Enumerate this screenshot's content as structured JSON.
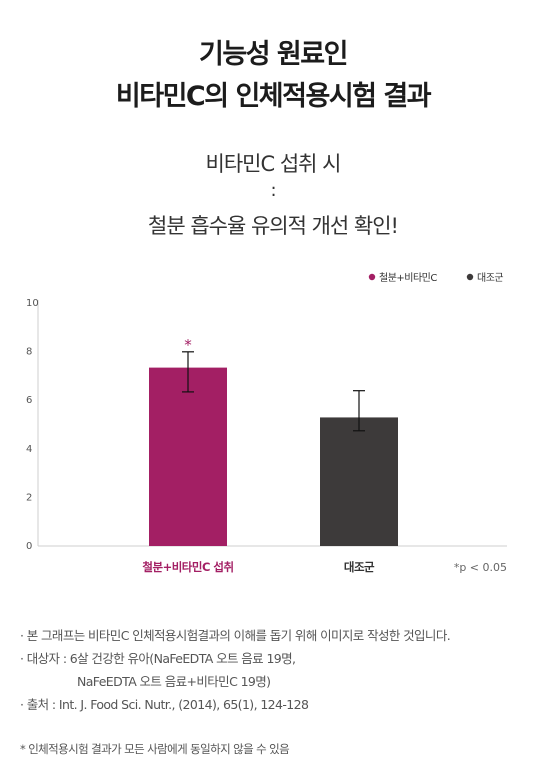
{
  "header": {
    "title_line1": "기능성 원료인",
    "title_line2": "비타민C의 인체적용시험 결과",
    "subtitle_line1": "비타민C 섭취 시",
    "subtitle_sep": ":",
    "subtitle_line2": "철분 흡수율 유의적 개선 확인!"
  },
  "chart_data": {
    "type": "bar",
    "categories": [
      "철분+비타민C 섭취",
      "대조군"
    ],
    "series": [
      {
        "values": [
          7.3,
          5.25
        ],
        "error_low": [
          6.3,
          4.7
        ],
        "error_high": [
          7.95,
          6.35
        ],
        "colors": [
          "#a31f64",
          "#3d3a3a"
        ]
      }
    ],
    "legend": [
      {
        "label": "철분+비타민C",
        "color": "#a31f64"
      },
      {
        "label": "대조군",
        "color": "#3d3a3a"
      }
    ],
    "legend_position": "top-right",
    "ylim": [
      0,
      10
    ],
    "yticks": [
      "0",
      "2",
      "4",
      "6",
      "8",
      "10"
    ],
    "significance_marker": "*",
    "significance_note": "*p < 0.05",
    "grid": false
  },
  "notes": {
    "line1": "· 본 그래프는 비타민C 인체적용시험결과의 이해를 돕기 위해 이미지로 작성한 것입니다.",
    "line2": "· 대상자 : 6살 건강한 유아(NaFeEDTA 오트 음료 19명,",
    "line3": "NaFeEDTA 오트 음료+비타민C 19명)",
    "line4": "· 출처 : Int. J. Food Sci. Nutr., (2014), 65(1), 124-128"
  },
  "disclaimer": "* 인체적용시험 결과가 모든 사람에게 동일하지 않을 수 있음"
}
